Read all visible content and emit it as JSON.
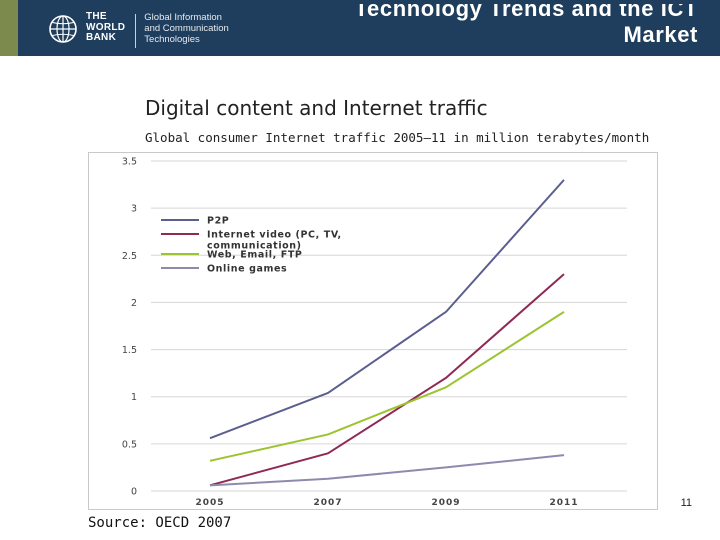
{
  "header": {
    "org_line1": "THE",
    "org_line2": "WORLD",
    "org_line3": "BANK",
    "unit_line1": "Global Information",
    "unit_line2": "and Communication",
    "unit_line3": "Technologies",
    "title_line1": "Technology Trends and the ICT",
    "title_line2": "Market",
    "colors": {
      "bar": "#1f3d5c",
      "accent": "#7d8a4e"
    }
  },
  "slide": {
    "title": "Digital content and Internet traffic",
    "subtitle": "Global consumer  Internet traffic 2005–11 in million terabytes/month",
    "source": "Source: OECD 2007",
    "page_number": "11"
  },
  "chart_data": {
    "type": "line",
    "categories": [
      "2005",
      "2007",
      "2009",
      "2011"
    ],
    "series": [
      {
        "name": "P2P",
        "values": [
          0.56,
          1.04,
          1.9,
          3.3
        ],
        "color": "#5b5f8f"
      },
      {
        "name": "Internet video (PC, TV, communication)",
        "values": [
          0.06,
          0.4,
          1.2,
          2.3
        ],
        "color": "#8e2a55"
      },
      {
        "name": "Web, Email, FTP",
        "values": [
          0.32,
          0.6,
          1.1,
          1.9
        ],
        "color": "#9cc430"
      },
      {
        "name": "Online games",
        "values": [
          0.06,
          0.13,
          0.25,
          0.38
        ],
        "color": "#8f8aad"
      }
    ],
    "ylim": [
      0,
      3.5
    ],
    "yticks": [
      "0",
      "0.5",
      "1",
      "1.5",
      "2",
      "2.5",
      "3",
      "3.5"
    ],
    "grid": true,
    "legend_position": "top-left"
  }
}
